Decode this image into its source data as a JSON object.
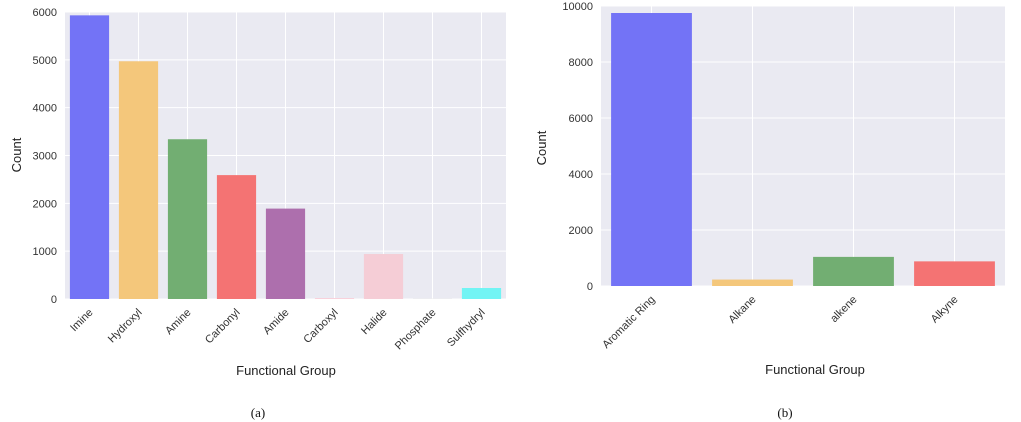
{
  "chart_data": [
    {
      "type": "bar",
      "caption": "(a)",
      "xlabel": "Functional Group",
      "ylabel": "Count",
      "ylim": [
        0,
        6000
      ],
      "yticks": [
        0,
        1000,
        2000,
        3000,
        4000,
        5000,
        6000
      ],
      "grid": true,
      "categories": [
        "Imine",
        "Hydroxyl",
        "Amine",
        "Carbonyl",
        "Amide",
        "Carboxyl",
        "Halide",
        "Phosphate",
        "Sulfhydryl"
      ],
      "values": [
        5930,
        4970,
        3340,
        2590,
        1890,
        20,
        940,
        5,
        230
      ],
      "colors": [
        "#7373f6",
        "#f4c77b",
        "#72ae72",
        "#f47373",
        "#ad6fad",
        "#f8d0da",
        "#f5cdd6",
        "#dcdcdc",
        "#72f4f4"
      ]
    },
    {
      "type": "bar",
      "caption": "(b)",
      "xlabel": "Functional Group",
      "ylabel": "Count",
      "ylim": [
        0,
        10000
      ],
      "yticks": [
        0,
        2000,
        4000,
        6000,
        8000,
        10000
      ],
      "grid": true,
      "categories": [
        "Aromatic Ring",
        "Alkane",
        "alkene",
        "Alkyne"
      ],
      "values": [
        9750,
        230,
        1040,
        880
      ],
      "colors": [
        "#7373f6",
        "#f4c77b",
        "#72ae72",
        "#f47373"
      ]
    }
  ]
}
